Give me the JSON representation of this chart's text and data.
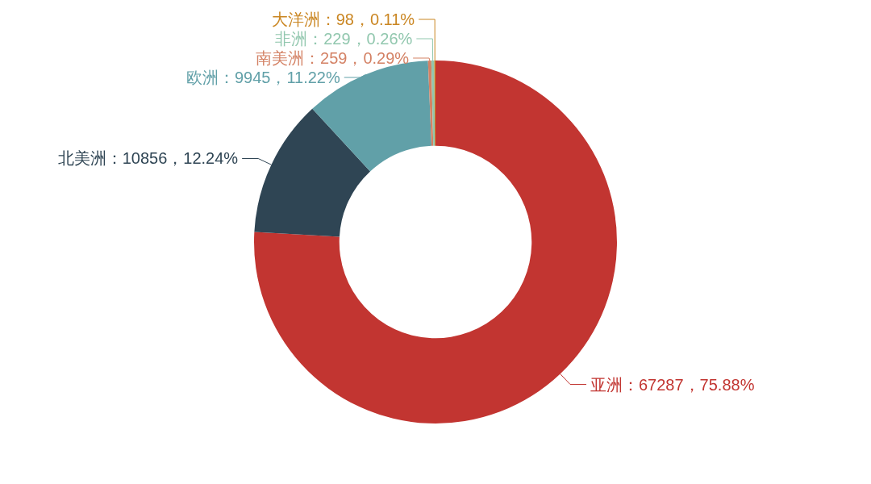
{
  "chart_data": {
    "type": "donut",
    "categories": [
      "亚洲",
      "北美洲",
      "欧洲",
      "南美洲",
      "非洲",
      "大洋洲"
    ],
    "values": [
      67287,
      10856,
      9945,
      259,
      229,
      98
    ],
    "colors": [
      "#c23531",
      "#2f4554",
      "#61a0a8",
      "#d48265",
      "#91c7ae",
      "#ca8622"
    ],
    "value_labels": [
      "：67287，75.88%",
      "：10856，12.24%",
      "：9945，11.22%",
      "：259，0.29%",
      "：229，0.26%",
      "：98，0.11%"
    ]
  }
}
